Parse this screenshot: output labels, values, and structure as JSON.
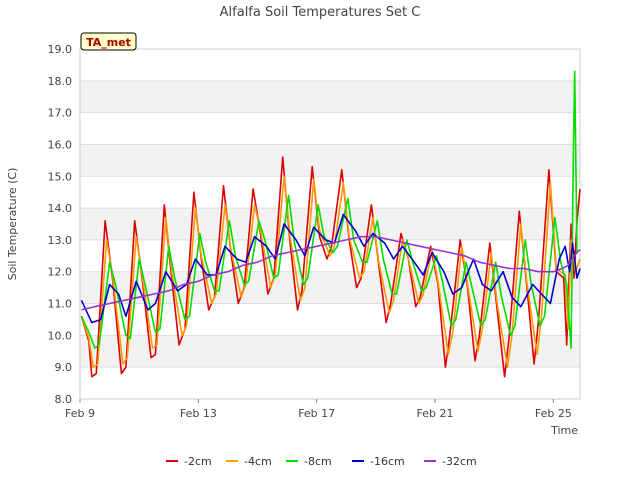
{
  "chart_data": {
    "type": "line",
    "title": "Alfalfa Soil Temperatures Set C",
    "xlabel": "Time",
    "ylabel": "Soil Temperature (C)",
    "badge": "TA_met",
    "ylim": [
      8.0,
      19.0
    ],
    "yticks": [
      "8.0",
      "9.0",
      "10.0",
      "11.0",
      "12.0",
      "13.0",
      "14.0",
      "15.0",
      "16.0",
      "17.0",
      "18.0",
      "19.0"
    ],
    "xlim": [
      9.0,
      25.9
    ],
    "xticks": [
      {
        "value": 9,
        "label": "Feb 9"
      },
      {
        "value": 13,
        "label": "Feb 13"
      },
      {
        "value": 17,
        "label": "Feb 17"
      },
      {
        "value": 21,
        "label": "Feb 21"
      },
      {
        "value": 25,
        "label": "Feb 25"
      }
    ],
    "grid": true,
    "legend_position": "bottom",
    "series": [
      {
        "name": "-2cm",
        "color": "#dd0000",
        "x": [
          9.05,
          9.3,
          9.4,
          9.55,
          9.85,
          10.1,
          10.4,
          10.55,
          10.85,
          11.1,
          11.4,
          11.55,
          11.85,
          12.1,
          12.35,
          12.55,
          12.85,
          13.1,
          13.35,
          13.55,
          13.85,
          14.1,
          14.35,
          14.55,
          14.85,
          15.1,
          15.35,
          15.55,
          15.85,
          16.1,
          16.35,
          16.5,
          16.85,
          17.1,
          17.35,
          17.5,
          17.85,
          18.1,
          18.35,
          18.5,
          18.85,
          19.1,
          19.35,
          19.5,
          19.85,
          20.1,
          20.35,
          20.5,
          20.85,
          21.1,
          21.35,
          21.5,
          21.85,
          22.1,
          22.35,
          22.5,
          22.85,
          23.1,
          23.35,
          23.5,
          23.85,
          24.1,
          24.35,
          24.5,
          24.85,
          25.1,
          25.35,
          25.45,
          25.6,
          25.7,
          25.8,
          25.9
        ],
        "y": [
          10.6,
          9.8,
          8.7,
          8.8,
          13.6,
          11.8,
          8.8,
          9.0,
          13.6,
          11.8,
          9.3,
          9.4,
          14.1,
          11.8,
          9.7,
          10.2,
          14.5,
          12.4,
          10.8,
          11.2,
          14.7,
          12.6,
          11.0,
          11.5,
          14.6,
          13.2,
          11.3,
          11.8,
          15.6,
          12.9,
          10.8,
          11.4,
          15.3,
          13.1,
          12.4,
          12.8,
          15.2,
          13.0,
          11.5,
          11.8,
          14.1,
          12.2,
          10.4,
          11.0,
          13.2,
          12.4,
          10.9,
          11.2,
          12.8,
          11.6,
          9.0,
          10.0,
          13.0,
          11.5,
          9.2,
          10.0,
          12.9,
          10.8,
          8.7,
          9.9,
          13.9,
          11.6,
          9.1,
          10.5,
          15.2,
          12.0,
          11.8,
          9.7,
          13.5,
          11.8,
          13.6,
          14.6
        ]
      },
      {
        "name": "-4cm",
        "color": "#ff9900",
        "x": [
          9.05,
          9.3,
          9.45,
          9.6,
          9.9,
          10.1,
          10.45,
          10.6,
          10.9,
          11.1,
          11.45,
          11.6,
          11.9,
          12.1,
          12.45,
          12.6,
          12.9,
          13.1,
          13.45,
          13.6,
          13.9,
          14.1,
          14.45,
          14.6,
          14.9,
          15.1,
          15.45,
          15.6,
          15.9,
          16.1,
          16.45,
          16.6,
          16.9,
          17.1,
          17.45,
          17.6,
          17.9,
          18.1,
          18.45,
          18.6,
          18.9,
          19.1,
          19.45,
          19.6,
          19.9,
          20.1,
          20.45,
          20.6,
          20.9,
          21.1,
          21.45,
          21.6,
          21.9,
          22.1,
          22.45,
          22.6,
          22.9,
          23.1,
          23.45,
          23.6,
          23.9,
          24.1,
          24.45,
          24.6,
          24.9,
          25.1,
          25.4,
          25.5,
          25.6,
          25.75,
          25.9
        ],
        "y": [
          10.6,
          9.9,
          9.0,
          9.1,
          13.0,
          11.9,
          9.1,
          9.3,
          13.1,
          11.9,
          9.6,
          9.7,
          13.7,
          12.0,
          10.0,
          10.3,
          14.0,
          12.5,
          11.0,
          11.3,
          14.1,
          12.7,
          11.2,
          11.6,
          14.1,
          13.3,
          11.5,
          11.9,
          15.0,
          13.1,
          11.1,
          11.5,
          14.9,
          13.3,
          12.5,
          12.8,
          14.8,
          13.1,
          11.8,
          12.0,
          13.7,
          12.3,
          10.7,
          11.1,
          13.0,
          12.4,
          11.0,
          11.3,
          12.7,
          11.7,
          9.4,
          10.1,
          12.8,
          11.6,
          9.5,
          10.2,
          12.6,
          11.0,
          9.0,
          10.0,
          13.5,
          11.7,
          9.4,
          10.6,
          14.8,
          12.1,
          11.9,
          10.2,
          13.0,
          12.0,
          12.4
        ]
      },
      {
        "name": "-8cm",
        "color": "#00dd00",
        "x": [
          9.05,
          9.3,
          9.5,
          9.65,
          10.0,
          10.2,
          10.55,
          10.7,
          11.0,
          11.2,
          11.55,
          11.7,
          12.0,
          12.2,
          12.55,
          12.7,
          13.05,
          13.25,
          13.55,
          13.7,
          14.05,
          14.25,
          14.55,
          14.7,
          15.05,
          15.25,
          15.55,
          15.7,
          16.05,
          16.25,
          16.55,
          16.7,
          17.05,
          17.25,
          17.55,
          17.7,
          18.05,
          18.25,
          18.55,
          18.7,
          19.05,
          19.25,
          19.55,
          19.7,
          20.05,
          20.25,
          20.55,
          20.7,
          21.05,
          21.25,
          21.55,
          21.7,
          22.05,
          22.25,
          22.55,
          22.7,
          23.05,
          23.25,
          23.55,
          23.7,
          24.05,
          24.25,
          24.55,
          24.7,
          25.05,
          25.25,
          25.45,
          25.6,
          25.68,
          25.72,
          25.8
        ],
        "y": [
          10.6,
          10.1,
          9.6,
          9.7,
          12.3,
          11.6,
          10.0,
          9.9,
          12.4,
          11.6,
          10.1,
          10.2,
          12.8,
          11.8,
          10.5,
          10.6,
          13.2,
          12.3,
          11.4,
          11.4,
          13.6,
          12.5,
          11.6,
          11.7,
          13.6,
          13.0,
          11.8,
          11.9,
          14.4,
          12.9,
          11.6,
          11.8,
          14.1,
          13.1,
          12.6,
          12.8,
          14.3,
          13.0,
          12.3,
          12.3,
          13.6,
          12.4,
          11.3,
          11.3,
          13.0,
          12.3,
          11.4,
          11.5,
          12.5,
          11.7,
          10.3,
          10.5,
          12.3,
          11.5,
          10.3,
          10.5,
          12.3,
          11.2,
          10.0,
          10.3,
          13.0,
          11.6,
          10.3,
          10.6,
          13.7,
          12.3,
          11.6,
          9.6,
          16.0,
          18.3,
          12.6
        ]
      },
      {
        "name": "-16cm",
        "color": "#0000cc",
        "x": [
          9.05,
          9.4,
          9.7,
          10.0,
          10.3,
          10.55,
          10.9,
          11.3,
          11.55,
          11.9,
          12.3,
          12.6,
          12.9,
          13.3,
          13.6,
          13.9,
          14.3,
          14.6,
          14.9,
          15.3,
          15.6,
          15.9,
          16.3,
          16.6,
          16.9,
          17.3,
          17.6,
          17.9,
          18.3,
          18.6,
          18.9,
          19.3,
          19.6,
          19.9,
          20.3,
          20.6,
          20.9,
          21.3,
          21.6,
          21.9,
          22.3,
          22.6,
          22.9,
          23.3,
          23.6,
          23.9,
          24.3,
          24.6,
          24.9,
          25.2,
          25.4,
          25.55,
          25.65,
          25.8,
          25.9
        ],
        "y": [
          11.1,
          10.4,
          10.5,
          11.6,
          11.3,
          10.6,
          11.7,
          10.8,
          11.0,
          12.0,
          11.4,
          11.6,
          12.4,
          11.9,
          11.9,
          12.8,
          12.4,
          12.3,
          13.1,
          12.8,
          12.4,
          13.5,
          13.0,
          12.5,
          13.4,
          13.0,
          12.9,
          13.8,
          13.3,
          12.8,
          13.2,
          12.9,
          12.4,
          12.8,
          12.3,
          11.9,
          12.6,
          12.0,
          11.3,
          11.5,
          12.4,
          11.6,
          11.4,
          12.0,
          11.2,
          10.9,
          11.6,
          11.3,
          11.0,
          12.4,
          12.8,
          12.0,
          12.9,
          11.8,
          12.1
        ]
      },
      {
        "name": "-32cm",
        "color": "#9933cc",
        "x": [
          9.05,
          9.5,
          10.0,
          10.5,
          11.0,
          11.5,
          12.0,
          12.5,
          13.0,
          13.5,
          14.0,
          14.5,
          15.0,
          15.5,
          16.0,
          16.5,
          17.0,
          17.5,
          18.0,
          18.5,
          19.0,
          19.5,
          20.0,
          20.5,
          21.0,
          21.5,
          22.0,
          22.5,
          23.0,
          23.5,
          24.0,
          24.5,
          25.0,
          25.3,
          25.5,
          25.7,
          25.9
        ],
        "y": [
          10.8,
          10.9,
          11.0,
          11.1,
          11.2,
          11.3,
          11.4,
          11.6,
          11.7,
          11.9,
          12.0,
          12.2,
          12.3,
          12.5,
          12.6,
          12.7,
          12.8,
          12.9,
          13.0,
          13.1,
          13.1,
          13.0,
          12.9,
          12.8,
          12.7,
          12.6,
          12.5,
          12.3,
          12.2,
          12.1,
          12.1,
          12.0,
          12.0,
          12.1,
          12.2,
          12.5,
          12.7
        ]
      }
    ]
  }
}
